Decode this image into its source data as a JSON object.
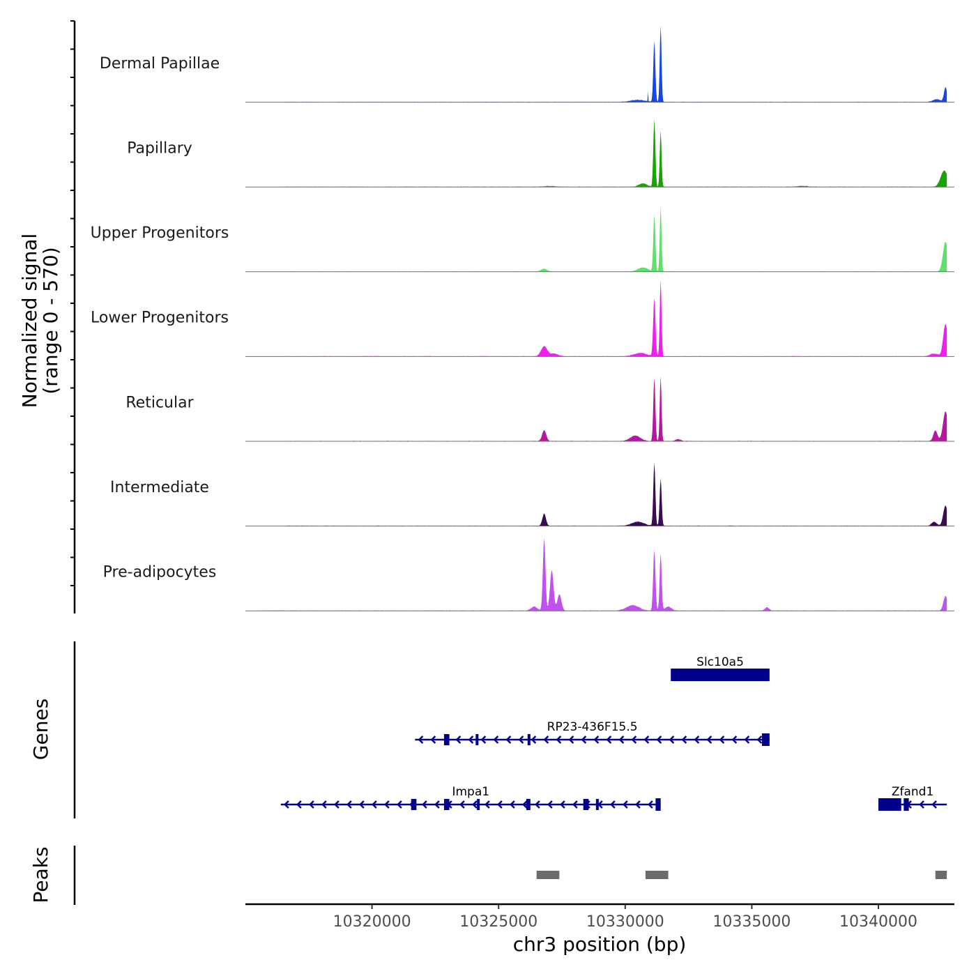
{
  "chart_data": {
    "type": "area",
    "title": "",
    "xlabel": "chr3 position (bp)",
    "ylabel_line1": "Normalized signal",
    "ylabel_line2": "(range 0 - 570)",
    "xlim": [
      10315000,
      10343000
    ],
    "ylim": [
      0,
      570
    ],
    "x_ticks": [
      10320000,
      10325000,
      10330000,
      10335000,
      10340000
    ],
    "x_tick_labels": [
      "10320000",
      "10325000",
      "10330000",
      "10335000",
      "10340000"
    ],
    "series": [
      {
        "name": "Dermal Papillae",
        "color": "#1746e6",
        "peaks": [
          [
            10330900,
            8,
            70
          ],
          [
            10331150,
            40,
            450
          ],
          [
            10331400,
            35,
            570
          ],
          [
            10342650,
            60,
            110
          ],
          [
            10342300,
            150,
            20
          ],
          [
            10330500,
            300,
            15
          ]
        ]
      },
      {
        "name": "Papillary",
        "color": "#18a300",
        "peaks": [
          [
            10331150,
            40,
            500
          ],
          [
            10331400,
            35,
            420
          ],
          [
            10330700,
            150,
            25
          ],
          [
            10342600,
            140,
            120
          ],
          [
            10337000,
            200,
            6
          ],
          [
            10327000,
            200,
            5
          ]
        ]
      },
      {
        "name": "Upper Progenitors",
        "color": "#5fe06a",
        "peaks": [
          [
            10331150,
            40,
            420
          ],
          [
            10331400,
            35,
            480
          ],
          [
            10342650,
            100,
            220
          ],
          [
            10326800,
            120,
            20
          ],
          [
            10330700,
            200,
            30
          ]
        ]
      },
      {
        "name": "Lower Progenitors",
        "color": "#f01ef0",
        "peaks": [
          [
            10331150,
            45,
            430
          ],
          [
            10331400,
            35,
            570
          ],
          [
            10326800,
            120,
            75
          ],
          [
            10327200,
            150,
            20
          ],
          [
            10330600,
            250,
            25
          ],
          [
            10342650,
            90,
            240
          ],
          [
            10342200,
            150,
            20
          ]
        ]
      },
      {
        "name": "Reticular",
        "color": "#b8169e",
        "peaks": [
          [
            10331150,
            40,
            470
          ],
          [
            10331400,
            35,
            480
          ],
          [
            10326800,
            80,
            80
          ],
          [
            10330400,
            200,
            40
          ],
          [
            10342650,
            100,
            220
          ],
          [
            10342250,
            80,
            80
          ],
          [
            10332100,
            100,
            15
          ]
        ]
      },
      {
        "name": "Intermediate",
        "color": "#3a0b54",
        "peaks": [
          [
            10331150,
            40,
            470
          ],
          [
            10331400,
            40,
            350
          ],
          [
            10326800,
            70,
            90
          ],
          [
            10330500,
            250,
            30
          ],
          [
            10342650,
            90,
            150
          ],
          [
            10342200,
            100,
            30
          ]
        ]
      },
      {
        "name": "Pre-adipocytes",
        "color": "#c050f0",
        "peaks": [
          [
            10326800,
            50,
            540
          ],
          [
            10327100,
            70,
            300
          ],
          [
            10327400,
            80,
            120
          ],
          [
            10326400,
            120,
            30
          ],
          [
            10331150,
            45,
            450
          ],
          [
            10331400,
            40,
            420
          ],
          [
            10330300,
            250,
            40
          ],
          [
            10331700,
            120,
            30
          ],
          [
            10335600,
            80,
            25
          ],
          [
            10342650,
            80,
            110
          ]
        ]
      }
    ],
    "genes": {
      "title": "Genes",
      "color": "#00008b",
      "items": [
        {
          "name": "Slc10a5",
          "start": 10331800,
          "end": 10335700,
          "row": 0,
          "strand": "-",
          "exons": [
            [
              10331800,
              10335700
            ]
          ]
        },
        {
          "name": "RP23-436F15.5",
          "start": 10321700,
          "end": 10335700,
          "row": 1,
          "strand": "-",
          "exons": [
            [
              10335400,
              10335700
            ]
          ],
          "marks": [
            10322900,
            10323000,
            10324150,
            10326200
          ]
        },
        {
          "name": "Impa1",
          "start": 10316400,
          "end": 10331400,
          "row": 2,
          "strand": "-",
          "exons": [
            [
              10331200,
              10331400
            ]
          ],
          "marks": [
            10321600,
            10321700,
            10322900,
            10323000,
            10324200,
            10326150,
            10326200,
            10328400,
            10328500,
            10328900
          ]
        },
        {
          "name": "Zfand1",
          "start": 10340000,
          "end": 10342700,
          "row": 2,
          "strand": "-",
          "exons": [
            [
              10340000,
              10340900
            ],
            [
              10341000,
              10341200
            ]
          ]
        }
      ]
    },
    "peaks_track": {
      "title": "Peaks",
      "color": "#6b6b6b",
      "regions": [
        [
          10326500,
          10327400
        ],
        [
          10330800,
          10331700
        ],
        [
          10342250,
          10342700
        ]
      ]
    }
  }
}
